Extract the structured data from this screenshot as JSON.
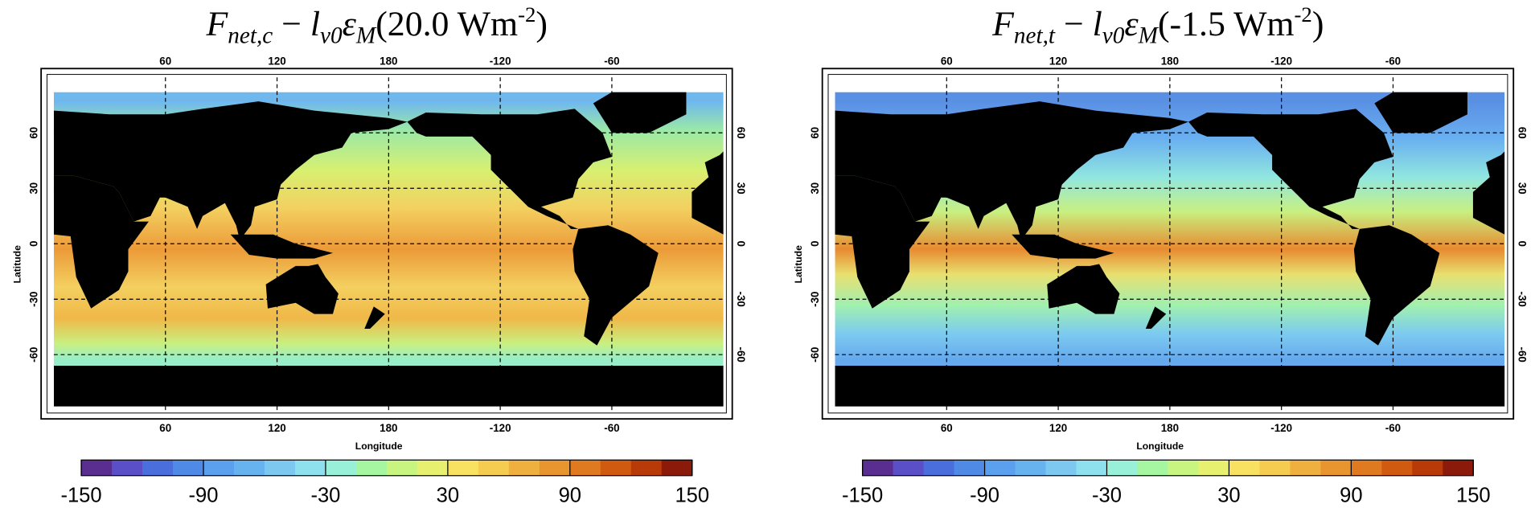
{
  "panels": [
    {
      "title": [
        "F",
        "net,c",
        " − ",
        "l",
        "v0",
        "ε",
        "M",
        "(20.0 Wm",
        "-2",
        ")"
      ],
      "xlim": [
        0,
        360
      ],
      "ylim": [
        -90,
        90
      ],
      "xticks": [
        60,
        120,
        180,
        {
          "value": 240,
          "label": "-120"
        },
        {
          "value": 300,
          "label": "-60"
        }
      ],
      "yticks": [
        60,
        30,
        0,
        -30,
        -60
      ],
      "xlabel": "Longitude",
      "ylabel": "Latitude",
      "colorbar": {
        "lim": [
          -150,
          150
        ],
        "ticks": [
          -150,
          -90,
          -30,
          30,
          90,
          150
        ]
      }
    },
    {
      "title": [
        "F",
        "net,t",
        " − ",
        "l",
        "v0",
        "ε",
        "M",
        "(-1.5 Wm",
        "-2",
        ")"
      ],
      "xlim": [
        0,
        360
      ],
      "ylim": [
        -90,
        90
      ],
      "xticks": [
        60,
        120,
        180,
        {
          "value": 240,
          "label": "-120"
        },
        {
          "value": 300,
          "label": "-60"
        }
      ],
      "yticks": [
        60,
        30,
        0,
        -30,
        -60
      ],
      "xlabel": "Longitude",
      "ylabel": "Latitude",
      "colorbar": {
        "lim": [
          -150,
          150
        ],
        "ticks": [
          -150,
          -90,
          -30,
          30,
          90,
          150
        ]
      }
    }
  ]
}
